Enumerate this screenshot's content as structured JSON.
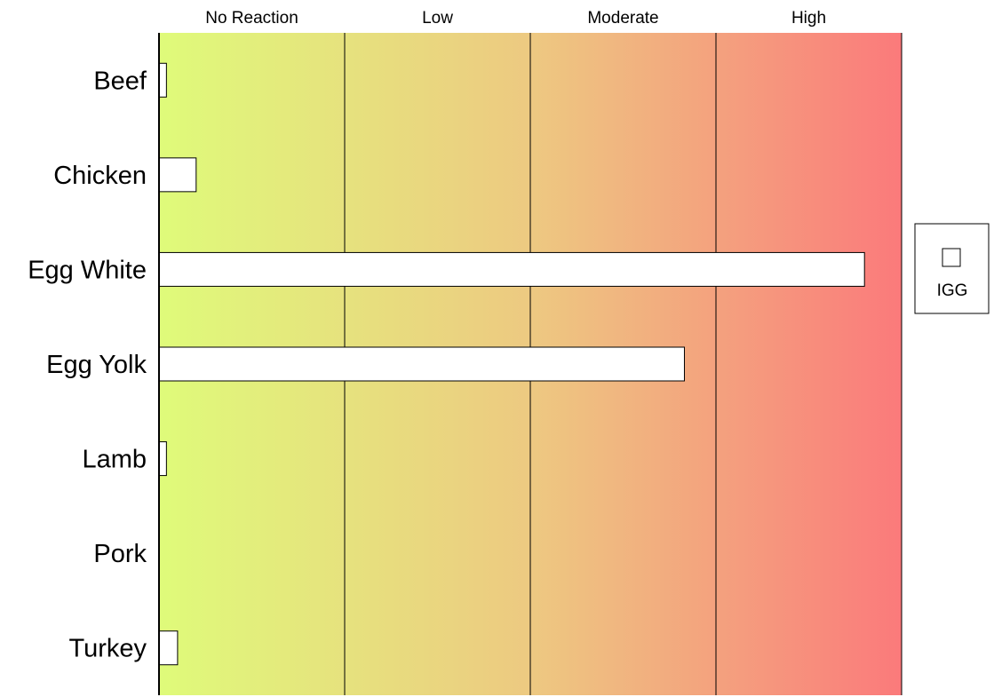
{
  "chart_data": {
    "type": "bar",
    "orientation": "horizontal",
    "bands": [
      "No Reaction",
      "Low",
      "Moderate",
      "High"
    ],
    "categories": [
      "Beef",
      "Chicken",
      "Egg White",
      "Egg Yolk",
      "Lamb",
      "Pork",
      "Turkey"
    ],
    "series": [
      {
        "name": "IGG",
        "values": [
          0.04,
          0.2,
          3.8,
          2.83,
          0.04,
          0,
          0.1
        ]
      }
    ],
    "xlim": [
      0,
      4
    ],
    "grid": true,
    "legend_position": "right",
    "colors": {
      "gradient_start": "#dffb7a",
      "gradient_mid": "#edc981",
      "gradient_end": "#fb7a7b",
      "bar_fill": "#ffffff",
      "bar_stroke": "#000000",
      "divider": "#000000"
    }
  }
}
